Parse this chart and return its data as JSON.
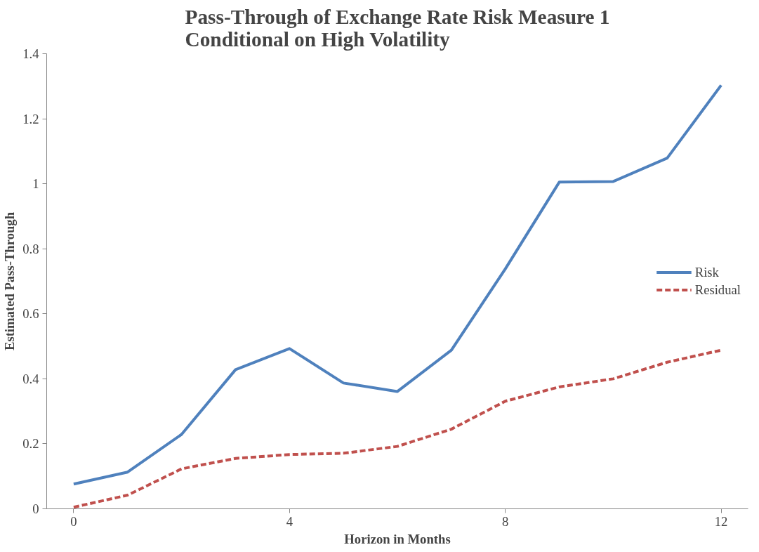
{
  "chart_data": {
    "type": "line",
    "title": "Pass-Through of Exchange Rate Risk Measure 1\nConditional on High Volatility",
    "xlabel": "Horizon in Months",
    "ylabel": "Estimated Pass-Through",
    "x": [
      0,
      1,
      2,
      3,
      4,
      5,
      6,
      7,
      8,
      9,
      10,
      11,
      12
    ],
    "series": [
      {
        "name": "Risk",
        "color": "#4f81bd",
        "line_style": "solid",
        "values": [
          0.076,
          0.113,
          0.229,
          0.428,
          0.493,
          0.387,
          0.361,
          0.488,
          0.738,
          1.005,
          1.007,
          1.079,
          1.303
        ]
      },
      {
        "name": "Residual",
        "color": "#c0504d",
        "line_style": "dashed",
        "values": [
          0.005,
          0.042,
          0.123,
          0.155,
          0.167,
          0.171,
          0.192,
          0.245,
          0.331,
          0.375,
          0.4,
          0.451,
          0.488
        ]
      }
    ],
    "xlim": [
      -0.5,
      12.5
    ],
    "xticks": [
      0,
      4,
      8,
      12
    ],
    "ylim": [
      0,
      1.4
    ],
    "yticks": [
      0,
      {
        "value": 0.2,
        "label": "0.2"
      },
      {
        "value": 0.4,
        "label": "0.4"
      },
      {
        "value": 0.6,
        "label": "0.6"
      },
      {
        "value": 0.8,
        "label": "0.8"
      },
      1,
      {
        "value": 1.2,
        "label": "1.2"
      },
      {
        "value": 1.4,
        "label": "1.4"
      }
    ],
    "grid": false,
    "legend": "right",
    "marker": "none"
  }
}
